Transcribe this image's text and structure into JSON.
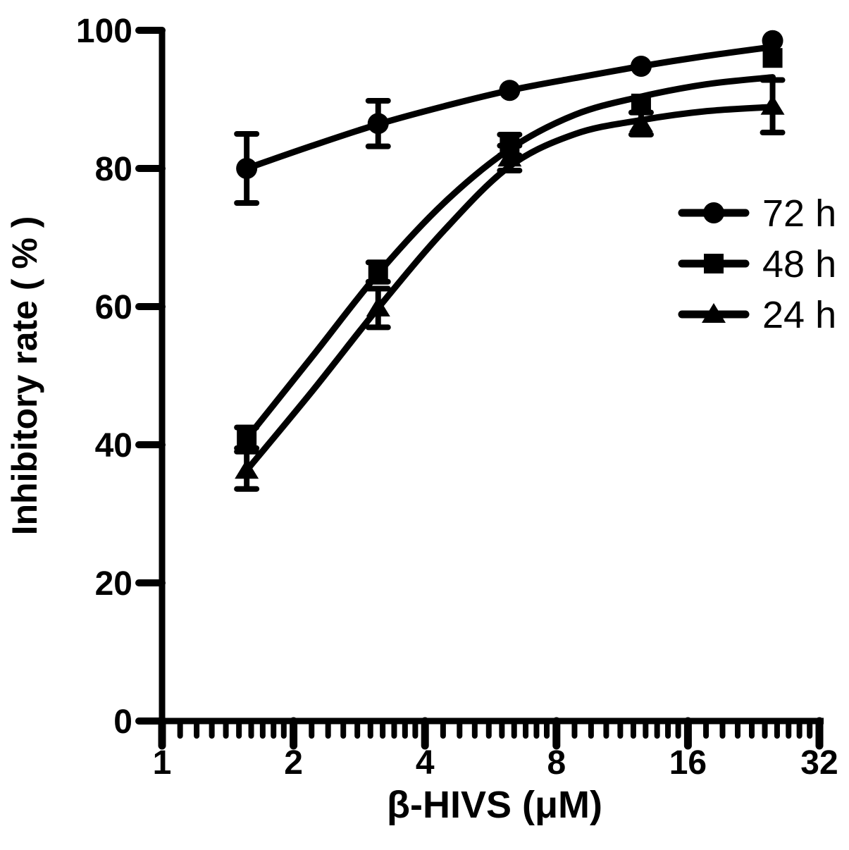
{
  "chart_data": {
    "type": "line",
    "title": "",
    "xlabel": "β-HIVS (μM)",
    "ylabel": "Inhibitory rate ( % )",
    "x_scale": "log2",
    "xlim": [
      1,
      32
    ],
    "x_major_ticks": [
      1,
      2,
      4,
      8,
      16,
      32
    ],
    "x_minor_ticks": [
      1.1,
      1.2,
      1.3,
      1.4,
      1.5,
      1.6,
      1.7,
      1.8,
      1.9,
      2.2,
      2.4,
      2.6,
      2.8,
      3.0,
      3.2,
      3.4,
      3.6,
      3.8,
      4.4,
      4.8,
      5.2,
      5.6,
      6.0,
      6.4,
      6.8,
      7.2,
      7.6,
      8.8,
      9.6,
      10.4,
      11.2,
      12.0,
      12.8,
      13.6,
      14.4,
      15.2,
      17.6,
      19.2,
      20.8,
      22.4,
      24.0,
      25.6,
      27.2,
      28.8,
      30.4
    ],
    "ylim": [
      0,
      100
    ],
    "y_ticks": [
      0,
      20,
      40,
      60,
      80,
      100
    ],
    "grid": false,
    "legend_position": "inside-upper-right",
    "foreground_color": "#000000",
    "background_color": "#ffffff",
    "series": [
      {
        "name": "72 h",
        "marker": "circle",
        "x": [
          1.5625,
          3.125,
          6.25,
          12.5,
          25
        ],
        "y": [
          80.0,
          86.5,
          91.3,
          94.8,
          98.5
        ],
        "y_err": [
          5.0,
          3.3,
          0,
          0,
          0
        ],
        "fit_x": [
          1.5625,
          2.21,
          3.125,
          4.42,
          6.25,
          8.84,
          12.5,
          17.68,
          25
        ],
        "fit_y": [
          80.0,
          83.3,
          86.4,
          89.0,
          91.3,
          93.1,
          94.8,
          96.3,
          97.6
        ]
      },
      {
        "name": "48 h",
        "marker": "square",
        "x": [
          1.5625,
          3.125,
          6.25,
          12.5,
          25
        ],
        "y": [
          41.0,
          65.0,
          83.4,
          89.4,
          96.0
        ],
        "y_err": [
          1.5,
          1.4,
          1.5,
          0,
          0
        ],
        "fit_x": [
          1.5625,
          2.21,
          3.125,
          4.42,
          6.25,
          8.84,
          12.5,
          17.68,
          25
        ],
        "fit_y": [
          40.9,
          52.8,
          64.8,
          75.0,
          82.8,
          87.8,
          90.4,
          92.2,
          93.2
        ]
      },
      {
        "name": "24 h",
        "marker": "triangle",
        "x": [
          1.5625,
          3.125,
          6.25,
          12.5,
          25
        ],
        "y": [
          36.3,
          59.8,
          81.5,
          86.5,
          89.0
        ],
        "y_err": [
          2.7,
          2.8,
          1.8,
          1.6,
          3.8
        ],
        "fit_x": [
          1.5625,
          2.21,
          3.125,
          4.42,
          6.25,
          8.84,
          12.5,
          17.68,
          25
        ],
        "fit_y": [
          36.3,
          47.8,
          59.8,
          71.0,
          80.3,
          85.0,
          87.0,
          88.3,
          88.9
        ]
      }
    ]
  }
}
